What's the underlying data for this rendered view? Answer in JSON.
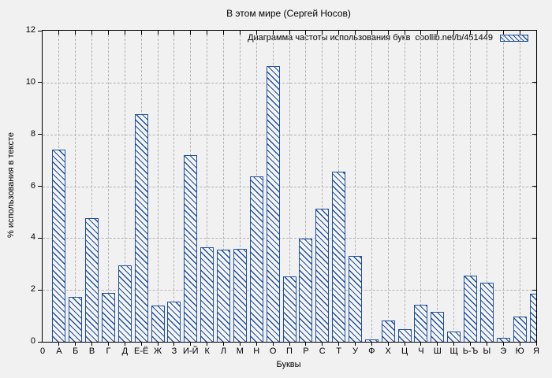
{
  "chart_data": {
    "type": "bar",
    "title": "В этом мире (Сергей Носов)",
    "legend": "Диаграмма частоты использования букв  coollib.net/b/451449",
    "legend_position": "top-right",
    "xlabel": "Буквы",
    "ylabel": "% использования в тексте",
    "ylim": [
      0,
      12
    ],
    "yticks": [
      0,
      2,
      4,
      6,
      8,
      10,
      12
    ],
    "origin_label": "0",
    "grid": true,
    "categories": [
      "А",
      "Б",
      "В",
      "Г",
      "Д",
      "Е-Ё",
      "Ж",
      "З",
      "И-Й",
      "К",
      "Л",
      "М",
      "Н",
      "О",
      "П",
      "Р",
      "С",
      "Т",
      "У",
      "Ф",
      "Х",
      "Ц",
      "Ч",
      "Ш",
      "Щ",
      "Ь-Ъ",
      "Ы",
      "Э",
      "Ю",
      "Я"
    ],
    "values": [
      7.42,
      1.73,
      4.78,
      1.88,
      2.96,
      8.79,
      1.39,
      1.56,
      7.21,
      3.64,
      3.55,
      3.59,
      6.39,
      10.62,
      2.52,
      3.99,
      5.13,
      6.57,
      3.31,
      0.09,
      0.83,
      0.49,
      1.42,
      1.16,
      0.41,
      2.56,
      2.27,
      0.16,
      0.97,
      1.84
    ],
    "colors": {
      "bar_border": "#1e4f9e",
      "bar_hatch": "#1e4f9e",
      "grid": "#b3b3b3",
      "axis": "#000000",
      "background": "#f1f1f1",
      "text": "#000000"
    }
  }
}
